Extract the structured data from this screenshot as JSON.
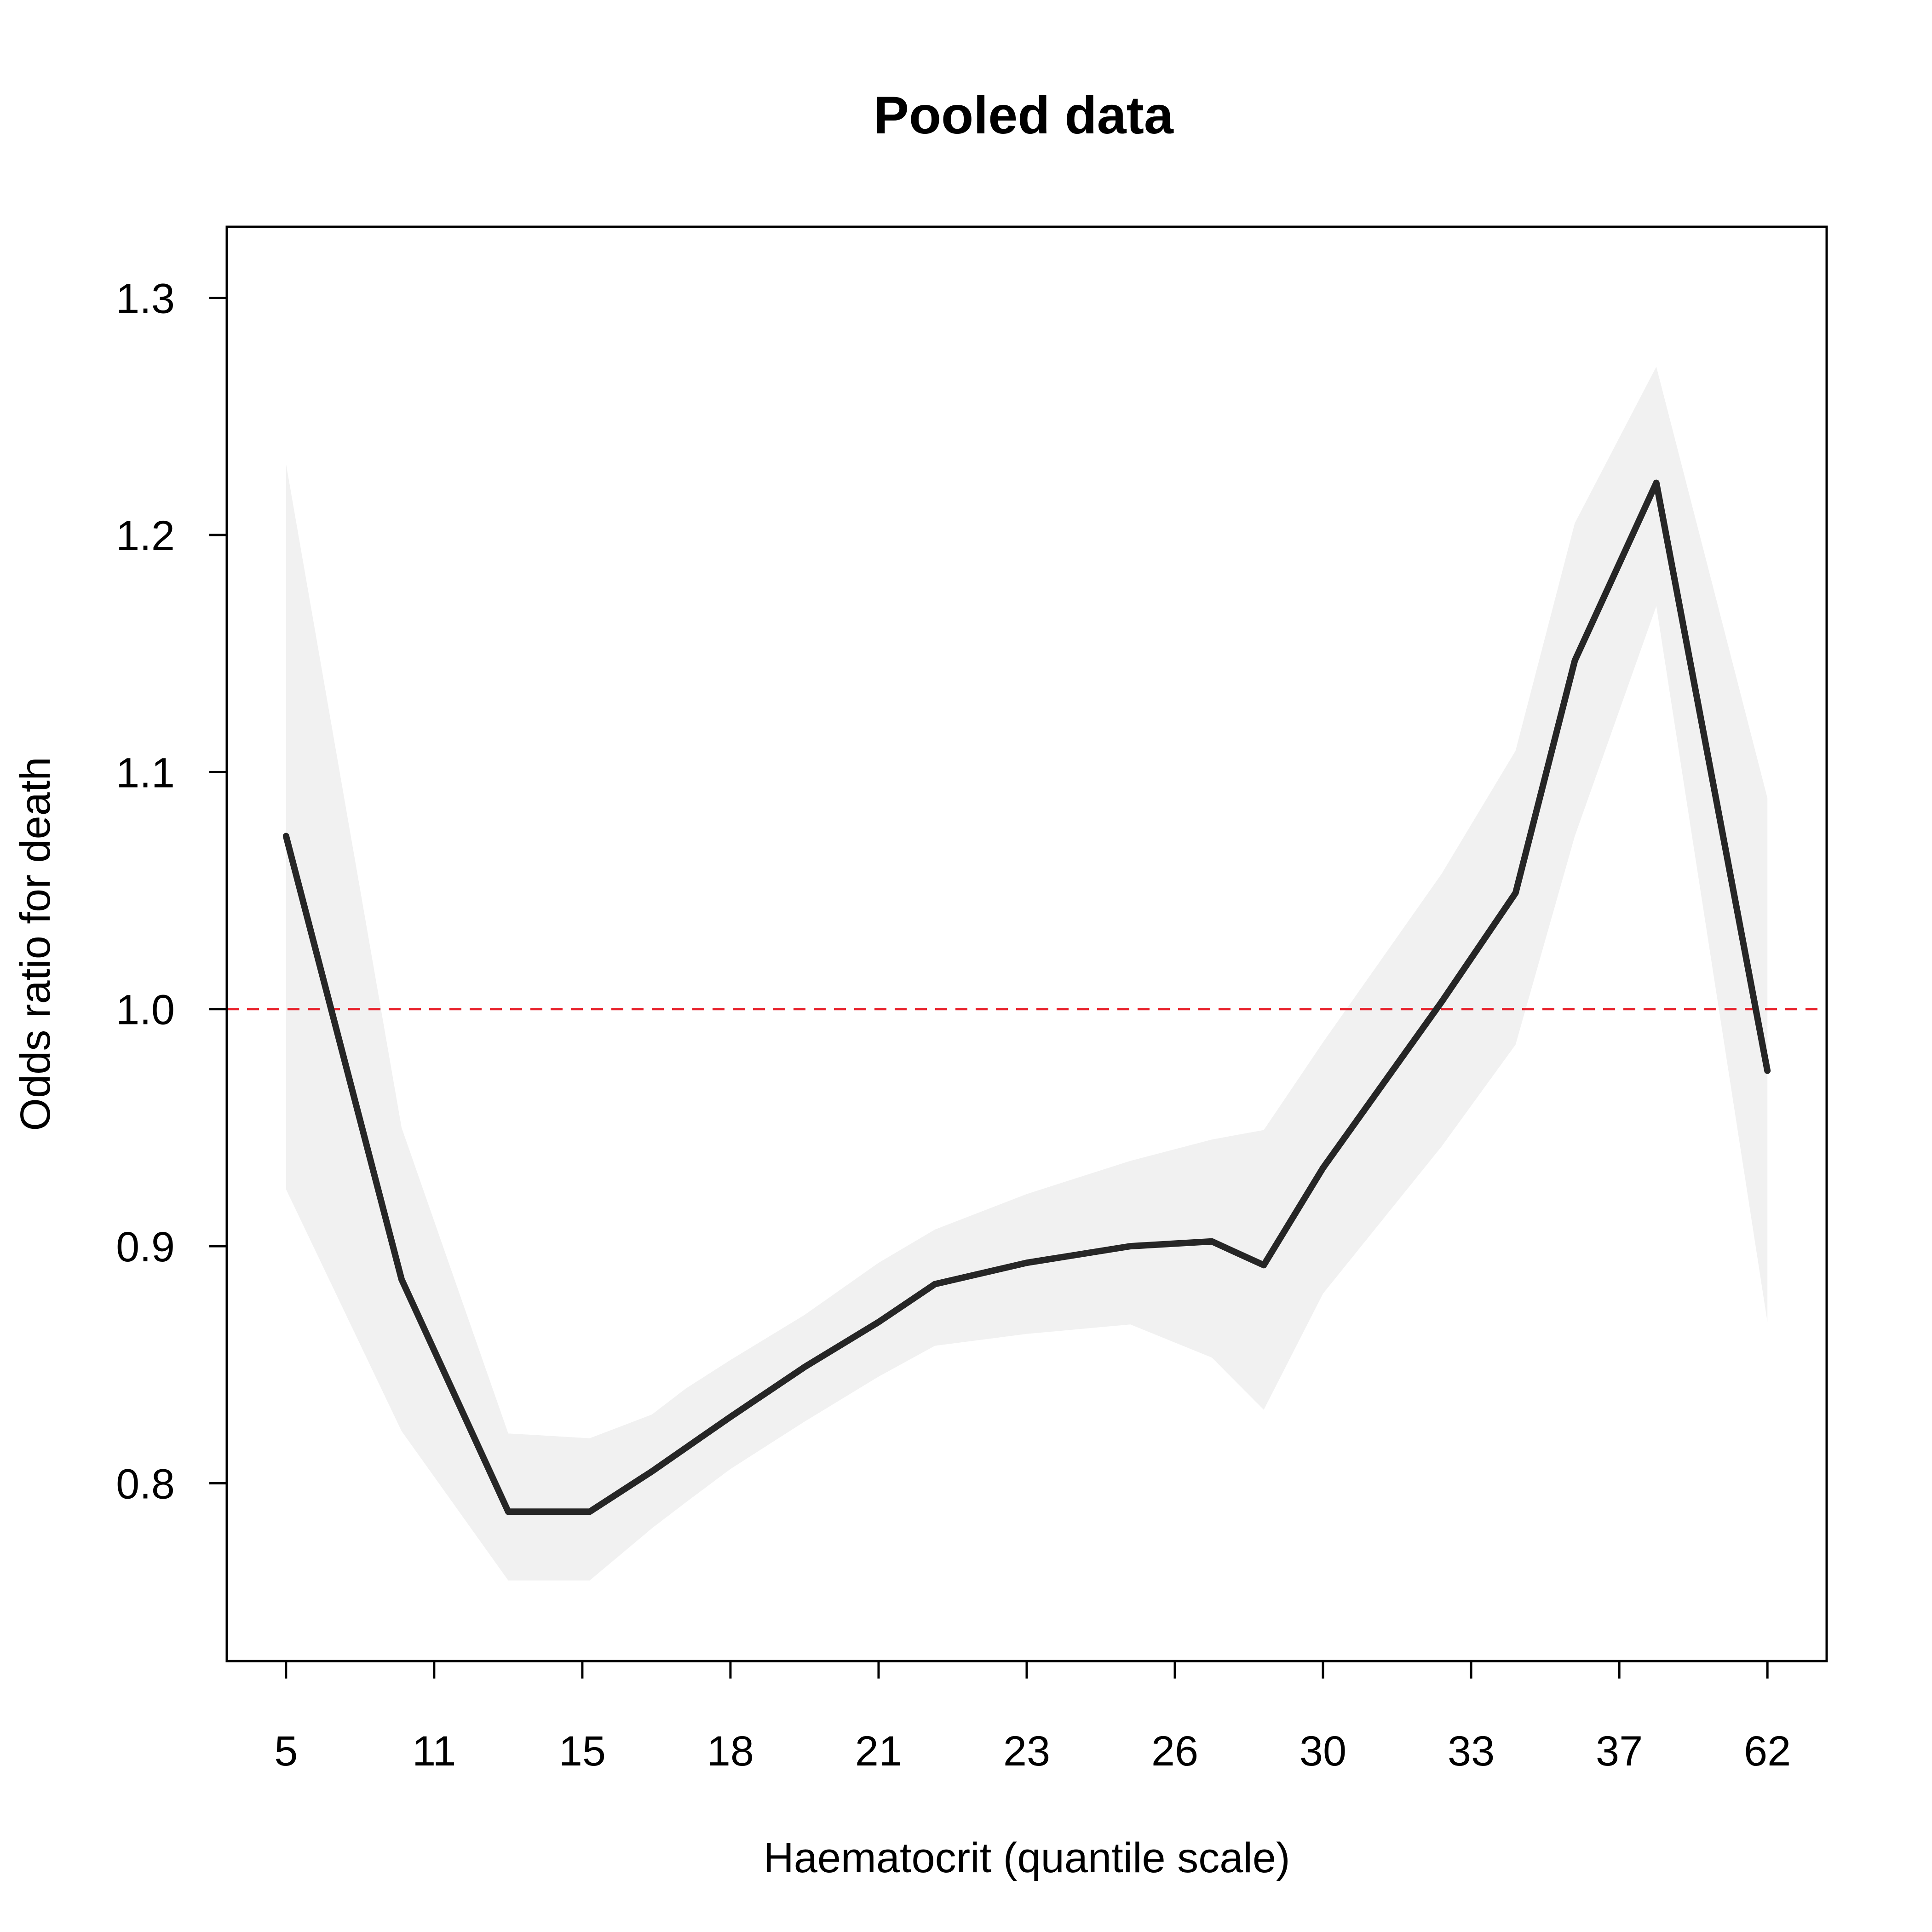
{
  "chart_data": {
    "type": "line",
    "title": "Pooled data",
    "xlabel": "Haematocrit (quantile scale)",
    "ylabel": "Odds ratio for death",
    "x_tick_labels": [
      "5",
      "11",
      "15",
      "18",
      "21",
      "23",
      "26",
      "30",
      "33",
      "37",
      "62"
    ],
    "y_ticks": [
      0.8,
      0.9,
      1.0,
      1.1,
      1.2,
      1.3
    ],
    "y_tick_labels": [
      "0.8",
      "0.9",
      "1.0",
      "1.1",
      "1.2",
      "1.3"
    ],
    "ylim": [
      0.725,
      1.33
    ],
    "xlim": [
      -0.4,
      10.4
    ],
    "grid": false,
    "series": [
      {
        "x": [
          0,
          0.78,
          1.5,
          2.05,
          2.47,
          2.7,
          3.0,
          3.5,
          4.0,
          4.38,
          5.0,
          5.7,
          6.25,
          6.6,
          7.0,
          7.8,
          8.3,
          8.7,
          9.25,
          10.0
        ],
        "y": [
          1.073,
          0.886,
          0.788,
          0.788,
          0.805,
          0.815,
          0.828,
          0.849,
          0.868,
          0.884,
          0.893,
          0.9,
          0.902,
          0.892,
          0.933,
          1.003,
          1.049,
          1.147,
          1.222,
          0.974
        ],
        "lower": [
          0.924,
          0.822,
          0.759,
          0.759,
          0.781,
          0.792,
          0.806,
          0.826,
          0.845,
          0.858,
          0.863,
          0.867,
          0.853,
          0.831,
          0.88,
          0.942,
          0.985,
          1.073,
          1.17,
          0.868
        ],
        "upper": [
          1.23,
          0.95,
          0.821,
          0.819,
          0.829,
          0.84,
          0.852,
          0.871,
          0.893,
          0.907,
          0.922,
          0.936,
          0.945,
          0.949,
          0.986,
          1.057,
          1.109,
          1.205,
          1.271,
          1.089
        ]
      }
    ],
    "reference_line": {
      "y": 1.0,
      "style": "dashed",
      "color": "#e8202a"
    },
    "colors": {
      "line": "#262626",
      "band": "#f1f1f1",
      "axis": "#000000"
    }
  }
}
